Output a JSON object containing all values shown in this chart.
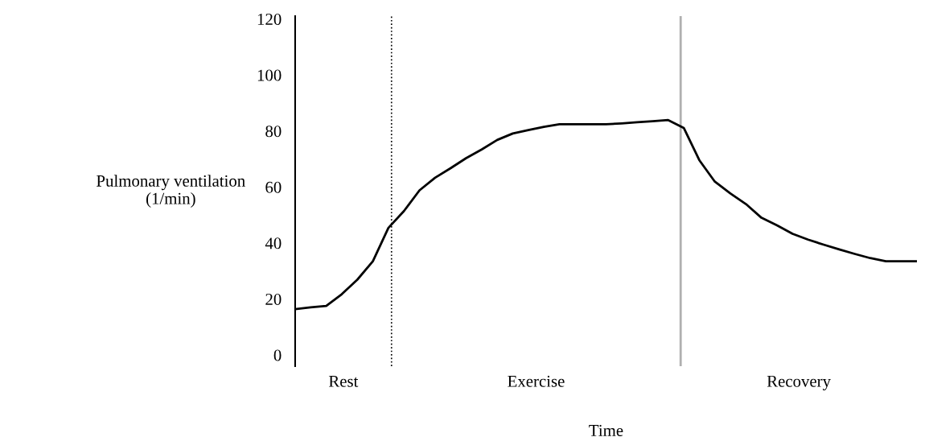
{
  "chart_data": {
    "type": "line",
    "xlabel": "Time",
    "ylabel": "Pulmonary ventilation\n(1/min)",
    "categories": [
      null,
      null,
      null,
      null,
      null,
      null,
      null,
      null,
      null,
      null,
      null,
      null,
      null,
      null,
      null,
      null,
      null,
      null,
      null,
      null,
      null,
      null,
      null,
      null,
      null,
      null,
      null,
      null,
      null,
      null,
      null,
      null,
      null,
      null,
      null,
      null,
      null,
      null,
      null,
      null,
      null
    ],
    "series": [
      {
        "color": "#000000",
        "values": [
          16.4,
          17.0,
          17.5,
          21.7,
          26.9,
          33.5,
          45.4,
          51.4,
          58.8,
          63.3,
          66.7,
          70.3,
          73.4,
          76.8,
          79.1,
          80.3,
          81.5,
          82.4,
          82.4,
          82.4,
          82.4,
          82.7,
          83.1,
          83.5,
          83.9,
          81.1,
          69.6,
          61.9,
          57.7,
          53.9,
          49.0,
          46.3,
          43.3,
          41.2,
          39.4,
          37.7,
          36.1,
          34.6,
          33.5,
          33.5,
          33.5
        ]
      }
    ],
    "annotations": [
      "Rest",
      "Exercise",
      "Recovery"
    ],
    "ylim": [
      -4,
      121
    ],
    "yticks": [
      0,
      20,
      40,
      60,
      80,
      100,
      120
    ],
    "grid": false,
    "marker": "none",
    "line_style": "solid"
  }
}
